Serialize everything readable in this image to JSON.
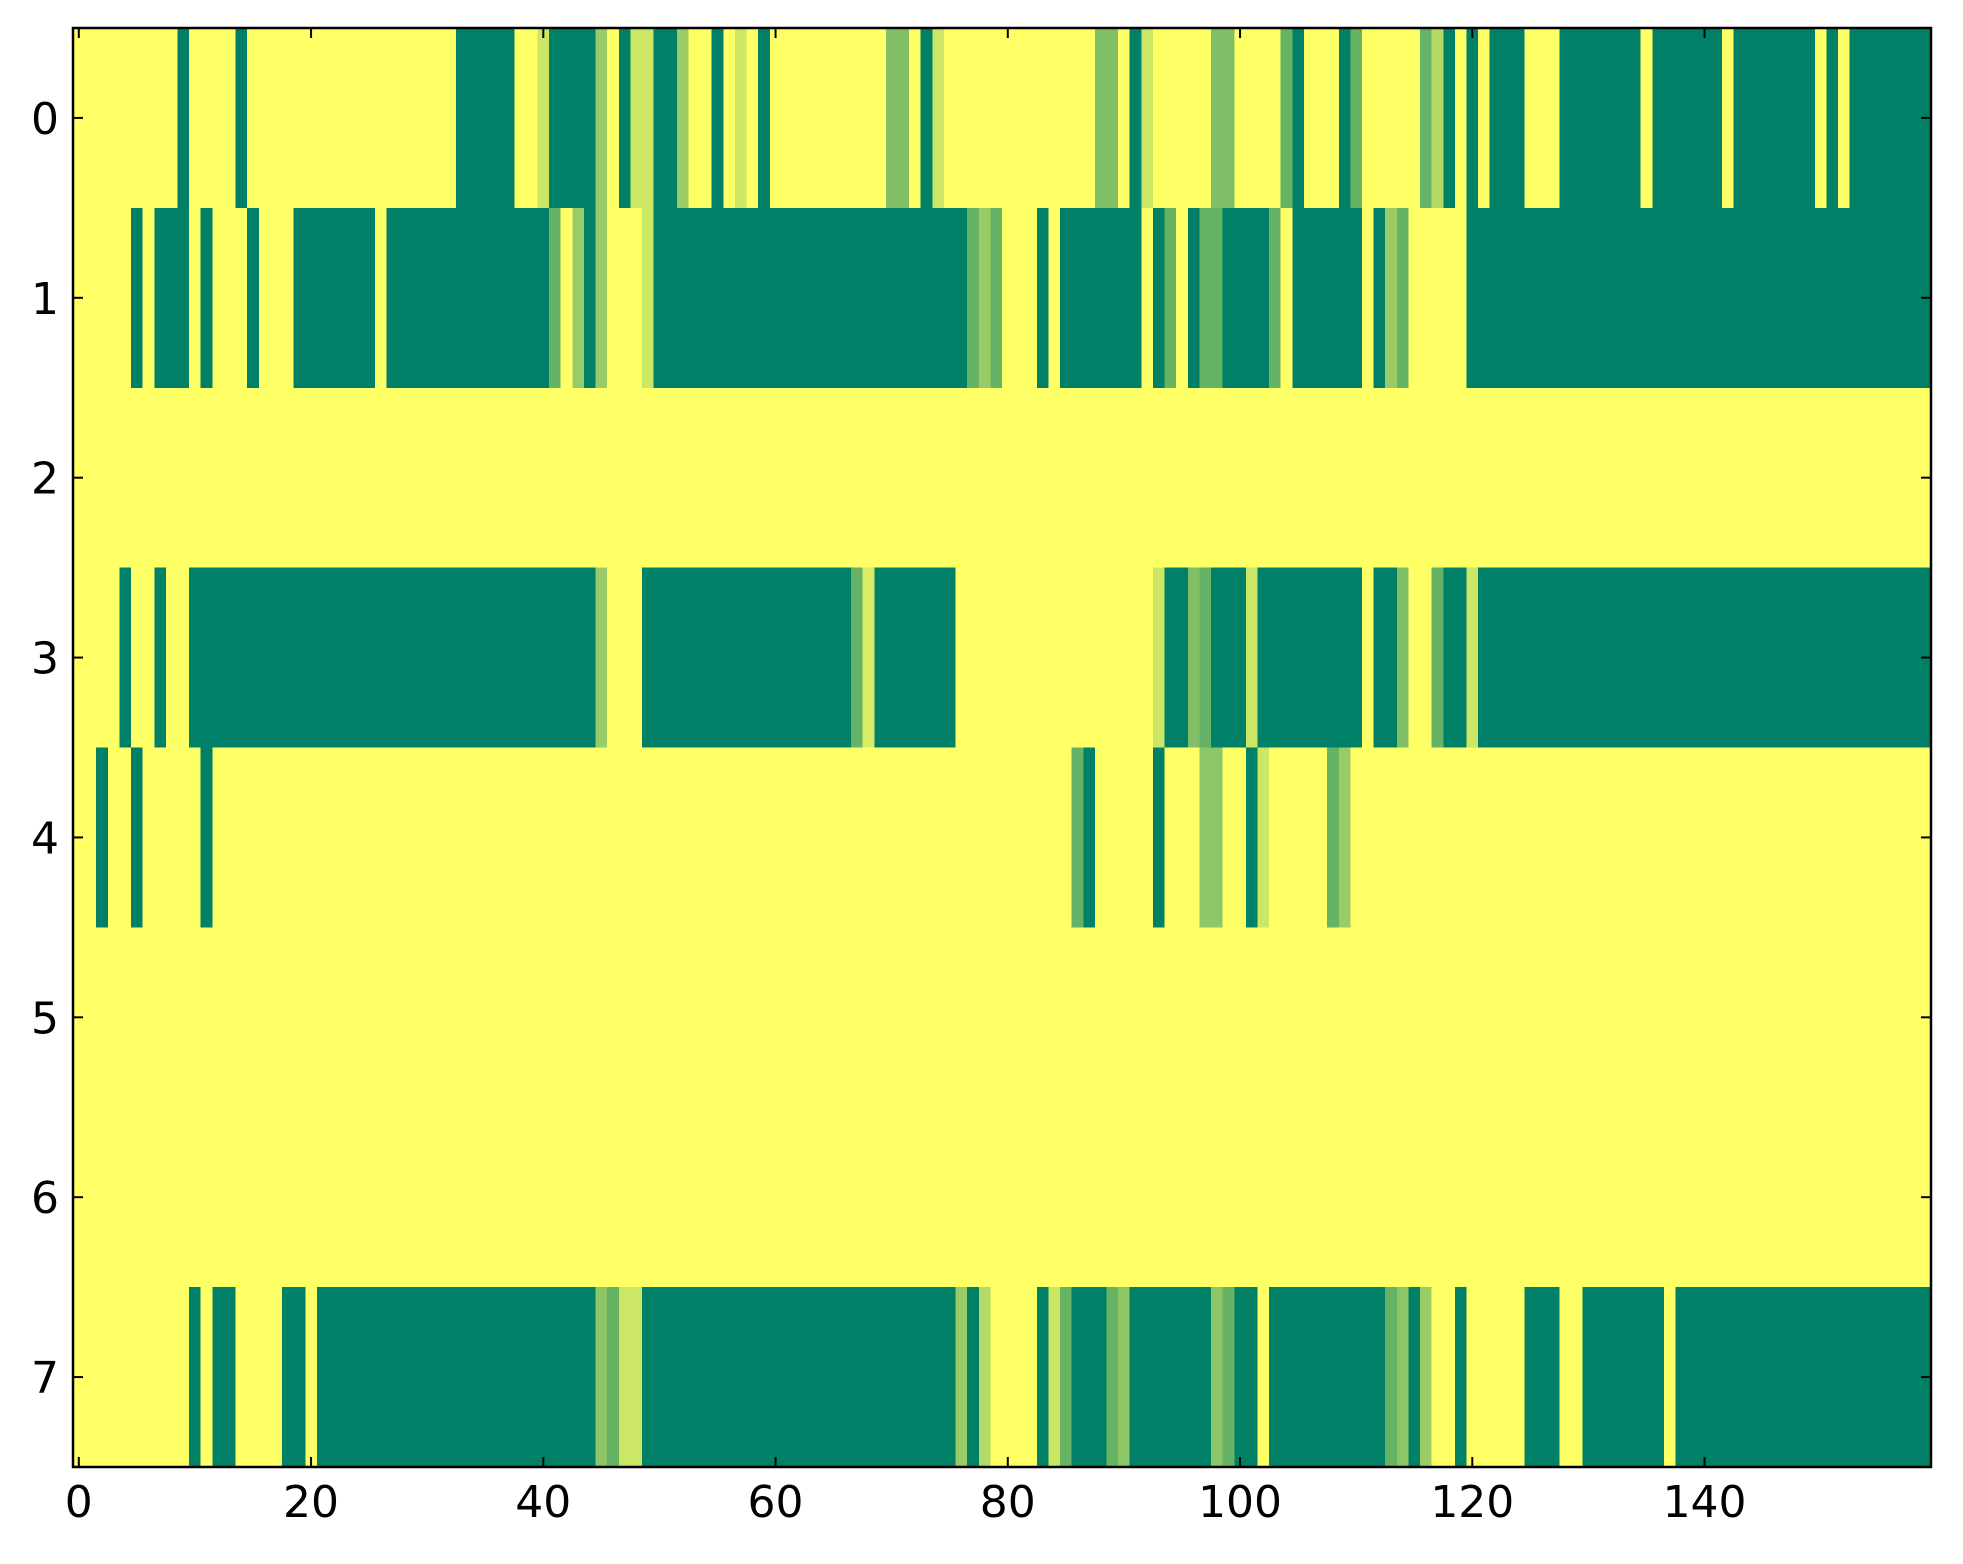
{
  "chart_data": {
    "type": "heatmap",
    "colormap": "summer_r",
    "clim": [
      0,
      1
    ],
    "xlim": [
      -0.5,
      159.5
    ],
    "ylim": [
      7.5,
      -0.5
    ],
    "xticks": [
      0,
      20,
      40,
      60,
      80,
      100,
      120,
      140
    ],
    "yticks": [
      0,
      1,
      2,
      3,
      4,
      5,
      6,
      7
    ],
    "values": [
      [
        0,
        0,
        0,
        0,
        0,
        0,
        0,
        0,
        0,
        1,
        0,
        0,
        0,
        0,
        1,
        0,
        0,
        0,
        0,
        0,
        0,
        0,
        0,
        0,
        0,
        0,
        0,
        0,
        0,
        0,
        0,
        0,
        0,
        1,
        1,
        1,
        1,
        1,
        0,
        0,
        0.2,
        1,
        1,
        1,
        1,
        0.4,
        0,
        1,
        0.2,
        0.2,
        1,
        1,
        0.4,
        0,
        0,
        1,
        0,
        0.2,
        0,
        1,
        0,
        0,
        0,
        0,
        0,
        0,
        0,
        0,
        0,
        0,
        0.5,
        0.5,
        0,
        1,
        0.2,
        0,
        0,
        0,
        0,
        0,
        0,
        0,
        0,
        0,
        0,
        0,
        0,
        0,
        0.5,
        0.5,
        0,
        1,
        0.2,
        0,
        0,
        0,
        0,
        0,
        0.5,
        0.5,
        0,
        0,
        0,
        0,
        0.6,
        1,
        0,
        0,
        0,
        1,
        0.6,
        0,
        0,
        0,
        0,
        0,
        0.6,
        0.3,
        1,
        0,
        1,
        0,
        1,
        1,
        1,
        0,
        0,
        0,
        1,
        1,
        1,
        1,
        1,
        1,
        1,
        0,
        1,
        1,
        1,
        1,
        1,
        1,
        0,
        1,
        1,
        1,
        1,
        1,
        1,
        1,
        0,
        1,
        0,
        1,
        1,
        1,
        1,
        1,
        1,
        1
      ],
      [
        0,
        0,
        0,
        0,
        0,
        1,
        0,
        1,
        1,
        1,
        0,
        1,
        0,
        0,
        0,
        1,
        0,
        0,
        0,
        1,
        1,
        1,
        1,
        1,
        1,
        1,
        0,
        1,
        1,
        1,
        1,
        1,
        1,
        1,
        1,
        1,
        1,
        1,
        1,
        1,
        1,
        0.6,
        0,
        0.4,
        1,
        0.4,
        0,
        0,
        0,
        0.2,
        1,
        1,
        1,
        1,
        1,
        1,
        1,
        1,
        1,
        1,
        1,
        1,
        1,
        1,
        1,
        1,
        1,
        1,
        1,
        1,
        1,
        1,
        1,
        1,
        1,
        1,
        1,
        0.6,
        0.4,
        0.6,
        0,
        0,
        0,
        1,
        0,
        1,
        1,
        1,
        1,
        1,
        1,
        1,
        0,
        1,
        0.6,
        0,
        1,
        0.6,
        0.6,
        1,
        1,
        1,
        1,
        0.6,
        0,
        1,
        1,
        1,
        1,
        1,
        1,
        0,
        1,
        0.4,
        0.6,
        0,
        0,
        0,
        0,
        0,
        1,
        1,
        1,
        1,
        1,
        1,
        1,
        1,
        1,
        1,
        1,
        1,
        1,
        1,
        1,
        1,
        1,
        1,
        1,
        1,
        1,
        1,
        1,
        1,
        1,
        1,
        1,
        1,
        1,
        1,
        1,
        1,
        1,
        1,
        1,
        1,
        1,
        1,
        1,
        1
      ],
      [
        0,
        0,
        0,
        0,
        0,
        0,
        0,
        0,
        0,
        0,
        0,
        0,
        0,
        0,
        0,
        0,
        0,
        0,
        0,
        0,
        0,
        0,
        0,
        0,
        0,
        0,
        0,
        0,
        0,
        0,
        0,
        0,
        0,
        0,
        0,
        0,
        0,
        0,
        0,
        0,
        0,
        0,
        0,
        0,
        0,
        0,
        0,
        0,
        0,
        0,
        0,
        0,
        0,
        0,
        0,
        0,
        0,
        0,
        0,
        0,
        0,
        0,
        0,
        0,
        0,
        0,
        0,
        0,
        0,
        0,
        0,
        0,
        0,
        0,
        0,
        0,
        0,
        0,
        0,
        0,
        0,
        0,
        0,
        0,
        0,
        0,
        0,
        0,
        0,
        0,
        0,
        0,
        0,
        0,
        0,
        0,
        0,
        0,
        0,
        0,
        0,
        0,
        0,
        0,
        0,
        0,
        0,
        0,
        0,
        0,
        0,
        0,
        0,
        0,
        0,
        0,
        0,
        0,
        0,
        0,
        0,
        0,
        0,
        0,
        0,
        0,
        0,
        0,
        0,
        0,
        0,
        0,
        0,
        0,
        0,
        0,
        0,
        0,
        0,
        0,
        0,
        0,
        0,
        0,
        0,
        0,
        0,
        0,
        0,
        0,
        0,
        0,
        0,
        0,
        0,
        0,
        0,
        0,
        0,
        0
      ],
      [
        0,
        0,
        0,
        0,
        1,
        0,
        0,
        1,
        0,
        0,
        1,
        1,
        1,
        1,
        1,
        1,
        1,
        1,
        1,
        1,
        1,
        1,
        1,
        1,
        1,
        1,
        1,
        1,
        1,
        1,
        1,
        1,
        1,
        1,
        1,
        1,
        1,
        1,
        1,
        1,
        1,
        1,
        1,
        1,
        1,
        0.4,
        0,
        0,
        0,
        1,
        1,
        1,
        1,
        1,
        1,
        1,
        1,
        1,
        1,
        1,
        1,
        1,
        1,
        1,
        1,
        1,
        1,
        0.6,
        0.15,
        1,
        1,
        1,
        1,
        1,
        1,
        1,
        0,
        0,
        0,
        0,
        0,
        0,
        0,
        0,
        0,
        0,
        0,
        0,
        0,
        0,
        0,
        0,
        0,
        0.2,
        1,
        1,
        0.5,
        0.6,
        1,
        1,
        1,
        0.2,
        1,
        1,
        1,
        1,
        1,
        1,
        1,
        1,
        1,
        0,
        1,
        1,
        0.5,
        0,
        0,
        0.6,
        1,
        1,
        0.2,
        1,
        1,
        1,
        1,
        1,
        1,
        1,
        1,
        1,
        1,
        1,
        1,
        1,
        1,
        1,
        1,
        1,
        1,
        1,
        1,
        1,
        1,
        1,
        1,
        1,
        1,
        1,
        1,
        1,
        1,
        1,
        1,
        1,
        1,
        1,
        1,
        1,
        1,
        1
      ],
      [
        0,
        0,
        1,
        0,
        0,
        1,
        0,
        0,
        0,
        0,
        0,
        1,
        0,
        0,
        0,
        0,
        0,
        0,
        0,
        0,
        0,
        0,
        0,
        0,
        0,
        0,
        0,
        0,
        0,
        0,
        0,
        0,
        0,
        0,
        0,
        0,
        0,
        0,
        0,
        0,
        0,
        0,
        0,
        0,
        0,
        0,
        0,
        0,
        0,
        0,
        0,
        0,
        0,
        0,
        0,
        0,
        0,
        0,
        0,
        0,
        0,
        0,
        0,
        0,
        0,
        0,
        0,
        0,
        0,
        0,
        0,
        0,
        0,
        0,
        0,
        0,
        0,
        0,
        0,
        0,
        0,
        0,
        0,
        0,
        0,
        0,
        0.6,
        1,
        0,
        0,
        0,
        0,
        0,
        1,
        0,
        0,
        0,
        0.45,
        0.45,
        0,
        0,
        1,
        0.2,
        0,
        0,
        0,
        0,
        0,
        0.6,
        0.4,
        0,
        0,
        0,
        0,
        0,
        0,
        0,
        0,
        0,
        0,
        0,
        0,
        0,
        0,
        0,
        0,
        0,
        0,
        0,
        0,
        0,
        0,
        0,
        0,
        0,
        0,
        0,
        0,
        0,
        0,
        0,
        0,
        0,
        0,
        0,
        0,
        0,
        0,
        0,
        0,
        0,
        0,
        0,
        0,
        0,
        0,
        0,
        0,
        0,
        0
      ],
      [
        0,
        0,
        0,
        0,
        0,
        0,
        0,
        0,
        0,
        0,
        0,
        0,
        0,
        0,
        0,
        0,
        0,
        0,
        0,
        0,
        0,
        0,
        0,
        0,
        0,
        0,
        0,
        0,
        0,
        0,
        0,
        0,
        0,
        0,
        0,
        0,
        0,
        0,
        0,
        0,
        0,
        0,
        0,
        0,
        0,
        0,
        0,
        0,
        0,
        0,
        0,
        0,
        0,
        0,
        0,
        0,
        0,
        0,
        0,
        0,
        0,
        0,
        0,
        0,
        0,
        0,
        0,
        0,
        0,
        0,
        0,
        0,
        0,
        0,
        0,
        0,
        0,
        0,
        0,
        0,
        0,
        0,
        0,
        0,
        0,
        0,
        0,
        0,
        0,
        0,
        0,
        0,
        0,
        0,
        0,
        0,
        0,
        0,
        0,
        0,
        0,
        0,
        0,
        0,
        0,
        0,
        0,
        0,
        0,
        0,
        0,
        0,
        0,
        0,
        0,
        0,
        0,
        0,
        0,
        0,
        0,
        0,
        0,
        0,
        0,
        0,
        0,
        0,
        0,
        0,
        0,
        0,
        0,
        0,
        0,
        0,
        0,
        0,
        0,
        0,
        0,
        0,
        0,
        0,
        0,
        0,
        0,
        0,
        0,
        0,
        0,
        0,
        0,
        0,
        0,
        0,
        0,
        0,
        0,
        0
      ],
      [
        0,
        0,
        0,
        0,
        0,
        0,
        0,
        0,
        0,
        0,
        0,
        0,
        0,
        0,
        0,
        0,
        0,
        0,
        0,
        0,
        0,
        0,
        0,
        0,
        0,
        0,
        0,
        0,
        0,
        0,
        0,
        0,
        0,
        0,
        0,
        0,
        0,
        0,
        0,
        0,
        0,
        0,
        0,
        0,
        0,
        0,
        0,
        0,
        0,
        0,
        0,
        0,
        0,
        0,
        0,
        0,
        0,
        0,
        0,
        0,
        0,
        0,
        0,
        0,
        0,
        0,
        0,
        0,
        0,
        0,
        0,
        0,
        0,
        0,
        0,
        0,
        0,
        0,
        0,
        0,
        0,
        0,
        0,
        0,
        0,
        0,
        0,
        0,
        0,
        0,
        0,
        0,
        0,
        0,
        0,
        0,
        0,
        0,
        0,
        0,
        0,
        0,
        0,
        0,
        0,
        0,
        0,
        0,
        0,
        0,
        0,
        0,
        0,
        0,
        0,
        0,
        0,
        0,
        0,
        0,
        0,
        0,
        0,
        0,
        0,
        0,
        0,
        0,
        0,
        0,
        0,
        0,
        0,
        0,
        0,
        0,
        0,
        0,
        0,
        0,
        0,
        0,
        0,
        0,
        0,
        0,
        0,
        0,
        0,
        0,
        0,
        0,
        0,
        0,
        0,
        0,
        0,
        0,
        0,
        0
      ],
      [
        0,
        0,
        0,
        0,
        0,
        0,
        0,
        0,
        0,
        0,
        1,
        0,
        1,
        1,
        0,
        0,
        0,
        0,
        1,
        1,
        0,
        1,
        1,
        1,
        1,
        1,
        1,
        1,
        1,
        1,
        1,
        1,
        1,
        1,
        1,
        1,
        1,
        1,
        1,
        1,
        1,
        1,
        1,
        1,
        1,
        0.45,
        0.6,
        0.2,
        0.2,
        1,
        1,
        1,
        1,
        1,
        1,
        1,
        1,
        1,
        1,
        1,
        1,
        1,
        1,
        1,
        1,
        1,
        1,
        1,
        1,
        1,
        1,
        1,
        1,
        1,
        1,
        1,
        0.4,
        1,
        0.3,
        0,
        0,
        0,
        0,
        1,
        0.2,
        0.6,
        1,
        1,
        1,
        0.6,
        0.45,
        1,
        1,
        1,
        1,
        1,
        1,
        1,
        0.45,
        0.6,
        1,
        1,
        0,
        1,
        1,
        1,
        1,
        1,
        1,
        1,
        1,
        1,
        1,
        0.6,
        0.45,
        1,
        0.4,
        0,
        0,
        1,
        0,
        0,
        0,
        0,
        0,
        1,
        1,
        1,
        0,
        0,
        1,
        1,
        1,
        1,
        1,
        1,
        1,
        0,
        1,
        1,
        1,
        1,
        1,
        1,
        1,
        1,
        1,
        1,
        1,
        1,
        1,
        1,
        1,
        1,
        1,
        1,
        1,
        1,
        1,
        1
      ]
    ]
  }
}
